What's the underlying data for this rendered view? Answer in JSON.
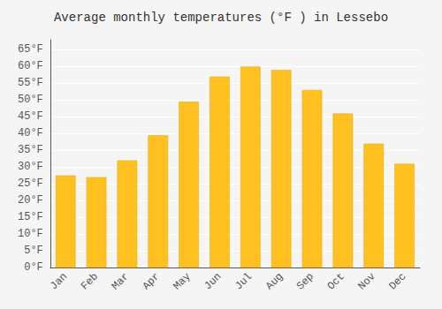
{
  "chart_data": {
    "type": "bar",
    "title": "Average monthly temperatures (°F ) in Lessebo",
    "categories": [
      "Jan",
      "Feb",
      "Mar",
      "Apr",
      "May",
      "Jun",
      "Jul",
      "Aug",
      "Sep",
      "Oct",
      "Nov",
      "Dec"
    ],
    "values": [
      27.5,
      27.0,
      32.0,
      39.5,
      49.5,
      57.0,
      60.0,
      59.0,
      53.0,
      46.0,
      37.0,
      31.0
    ],
    "color": "#FFC020",
    "ylim": [
      0,
      68
    ],
    "yticks": [
      {
        "value": 0,
        "label": "0°F"
      },
      {
        "value": 5,
        "label": "5°F"
      },
      {
        "value": 10,
        "label": "10°F"
      },
      {
        "value": 15,
        "label": "15°F"
      },
      {
        "value": 20,
        "label": "20°F"
      },
      {
        "value": 25,
        "label": "25°F"
      },
      {
        "value": 30,
        "label": "30°F"
      },
      {
        "value": 35,
        "label": "35°F"
      },
      {
        "value": 40,
        "label": "40°F"
      },
      {
        "value": 45,
        "label": "45°F"
      },
      {
        "value": 50,
        "label": "50°F"
      },
      {
        "value": 55,
        "label": "55°F"
      },
      {
        "value": 60,
        "label": "60°F"
      },
      {
        "value": 65,
        "label": "65°F"
      }
    ],
    "grid": true
  }
}
